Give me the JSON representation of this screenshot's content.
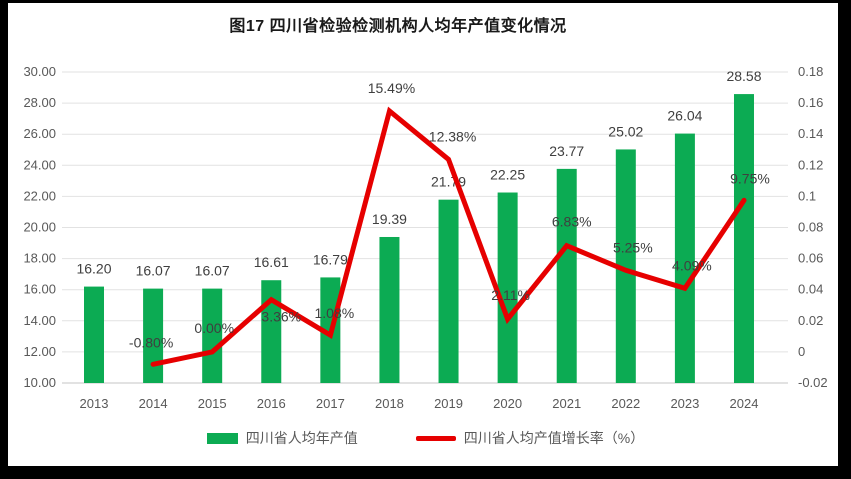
{
  "title": "图17  四川省检验检测机构人均年产值变化情况",
  "colors": {
    "bar_green": "#0cab53",
    "line_red": "#e60000",
    "gridline": "#e2e2e2",
    "axis_line": "#c6c6c6",
    "tick_text": "#595959",
    "data_label_text": "#3f3f3f",
    "frame_black": "#000000",
    "panel_white": "#ffffff"
  },
  "legend": [
    {
      "label": "四川省人均年产值",
      "type": "bar",
      "color": "#0cab53"
    },
    {
      "label": "四川省人均产值增长率（%）",
      "type": "line",
      "color": "#e60000"
    }
  ],
  "chart_data": {
    "type": "bar",
    "subtype": "combo-bar-line",
    "title": "图17  四川省检验检测机构人均年产值变化情况",
    "categories": [
      "2013",
      "2014",
      "2015",
      "2016",
      "2017",
      "2018",
      "2019",
      "2020",
      "2021",
      "2022",
      "2023",
      "2024"
    ],
    "series": [
      {
        "name": "四川省人均年产值",
        "type": "bar",
        "axis": "left",
        "color": "#0cab53",
        "values": [
          16.2,
          16.07,
          16.07,
          16.61,
          16.79,
          19.39,
          21.79,
          22.25,
          23.77,
          25.02,
          26.04,
          28.58
        ],
        "labels": [
          "16.20",
          "16.07",
          "16.07",
          "16.61",
          "16.79",
          "19.39",
          "21.79",
          "22.25",
          "23.77",
          "25.02",
          "26.04",
          "28.58"
        ]
      },
      {
        "name": "四川省人均产值增长率（%）",
        "type": "line",
        "axis": "right",
        "color": "#e60000",
        "values": [
          null,
          -0.008,
          0.0,
          0.0336,
          0.0108,
          0.1549,
          0.1238,
          0.0211,
          0.0683,
          0.0525,
          0.0409,
          0.0975
        ],
        "labels": [
          null,
          "-0.80%",
          "0.00%",
          "3.36%",
          "1.08%",
          "15.49%",
          "12.38%",
          "2.11%",
          "6.83%",
          "5.25%",
          "4.09%",
          "9.75%"
        ]
      }
    ],
    "left_axis": {
      "min": 10,
      "max": 30,
      "step": 2,
      "tick_labels": [
        "30.00",
        "28.00",
        "26.00",
        "24.00",
        "22.00",
        "20.00",
        "18.00",
        "16.00",
        "14.00",
        "12.00",
        "10.00"
      ]
    },
    "right_axis": {
      "min": -0.02,
      "max": 0.18,
      "step": 0.02,
      "tick_labels": [
        "0.18",
        "0.16",
        "0.14",
        "0.12",
        "0.1",
        "0.08",
        "0.06",
        "0.04",
        "0.02",
        "0",
        "-0.02"
      ]
    },
    "grid": true,
    "legend_position": "bottom"
  }
}
